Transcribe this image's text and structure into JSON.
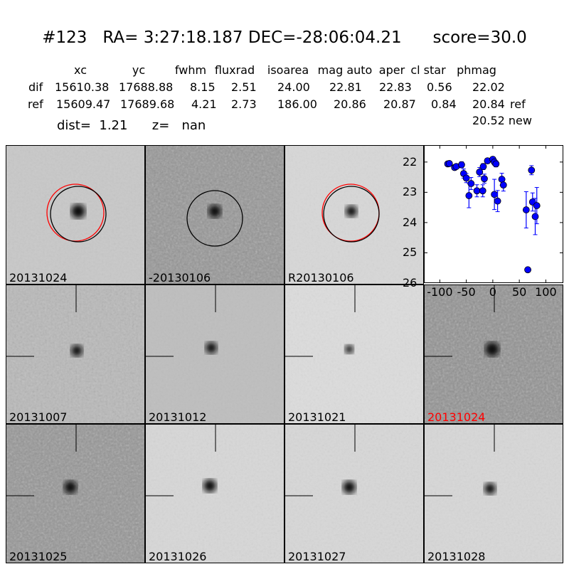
{
  "header": {
    "title": "#123   RA= 3:27:18.187 DEC=-28:06:04.21      score=30.0",
    "columns": [
      "xc",
      "yc",
      "fwhm",
      "fluxrad",
      "isoarea",
      "mag auto",
      "aper",
      "cl star",
      "phmag"
    ],
    "rows": [
      {
        "label": "dif",
        "values": [
          "15610.38",
          "17688.88",
          "8.15",
          "2.51",
          "24.00",
          "22.81",
          "22.83",
          "0.56",
          "22.02"
        ],
        "note": ""
      },
      {
        "label": "ref",
        "values": [
          "15609.47",
          "17689.68",
          "4.21",
          "2.73",
          "186.00",
          "20.86",
          "20.87",
          "0.84",
          "20.84"
        ],
        "note": "ref"
      }
    ],
    "extra_phmag": "20.52 new",
    "dist_text": "dist=  1.21      z=   nan"
  },
  "panels": [
    {
      "label": "20131024",
      "label_color": "#000000"
    },
    {
      "label": "-20130106",
      "label_color": "#000000"
    },
    {
      "label": "R20130106",
      "label_color": "#000000"
    },
    {
      "label": "20131007",
      "label_color": "#000000"
    },
    {
      "label": "20131012",
      "label_color": "#000000"
    },
    {
      "label": "20131021",
      "label_color": "#000000"
    },
    {
      "label": "20131024",
      "label_color": "#ff0000"
    },
    {
      "label": "20131025",
      "label_color": "#000000"
    },
    {
      "label": "20131026",
      "label_color": "#000000"
    },
    {
      "label": "20131027",
      "label_color": "#000000"
    },
    {
      "label": "20131028",
      "label_color": "#000000"
    }
  ],
  "chart_data": {
    "type": "scatter",
    "xlim": [
      -130,
      133
    ],
    "ylim": [
      26,
      21.44
    ],
    "y_inverted": true,
    "xticks": [
      "-100",
      "-50",
      "0",
      "50",
      "100"
    ],
    "xtick_values": [
      -100,
      -50,
      0,
      50,
      100
    ],
    "yticks": [
      "22",
      "23",
      "24",
      "25",
      "26"
    ],
    "ytick_values": [
      22,
      23,
      24,
      25,
      26
    ],
    "marker_color": "#0000ff",
    "points": [
      {
        "x": -85,
        "y": 22.06,
        "err": 0.05
      },
      {
        "x": -82,
        "y": 22.05,
        "err": 0.05
      },
      {
        "x": -72,
        "y": 22.18,
        "err": 0.05
      },
      {
        "x": -69,
        "y": 22.15,
        "err": 0.05
      },
      {
        "x": -59,
        "y": 22.09,
        "err": 0.1
      },
      {
        "x": -55,
        "y": 22.38,
        "err": 0.15
      },
      {
        "x": -50,
        "y": 22.53,
        "err": 0.15
      },
      {
        "x": -45,
        "y": 23.11,
        "err": 0.4
      },
      {
        "x": -41,
        "y": 22.71,
        "err": 0.2
      },
      {
        "x": -30,
        "y": 22.95,
        "err": 0.2
      },
      {
        "x": -25,
        "y": 22.33,
        "err": 0.15
      },
      {
        "x": -19,
        "y": 22.95,
        "err": 0.2
      },
      {
        "x": -18,
        "y": 22.15,
        "err": 0.1
      },
      {
        "x": -16,
        "y": 22.55,
        "err": 0.15
      },
      {
        "x": -10,
        "y": 21.96,
        "err": 0.05
      },
      {
        "x": 0,
        "y": 21.91,
        "err": 0.08
      },
      {
        "x": 3,
        "y": 22.0,
        "err": 0.1
      },
      {
        "x": 6,
        "y": 22.06,
        "err": 0.1
      },
      {
        "x": 3,
        "y": 23.07,
        "err": 0.5
      },
      {
        "x": 9,
        "y": 23.29,
        "err": 0.35
      },
      {
        "x": 17,
        "y": 22.57,
        "err": 0.2
      },
      {
        "x": 20,
        "y": 22.76,
        "err": 0.2
      },
      {
        "x": 63,
        "y": 23.58,
        "err": 0.6
      },
      {
        "x": 73,
        "y": 22.27,
        "err": 0.15
      },
      {
        "x": 75,
        "y": 23.32,
        "err": 0.3
      },
      {
        "x": 80,
        "y": 23.8,
        "err": 0.6
      },
      {
        "x": 83,
        "y": 23.44,
        "err": 0.6
      },
      {
        "x": 66,
        "y": 25.56,
        "err": 0.05
      }
    ]
  }
}
